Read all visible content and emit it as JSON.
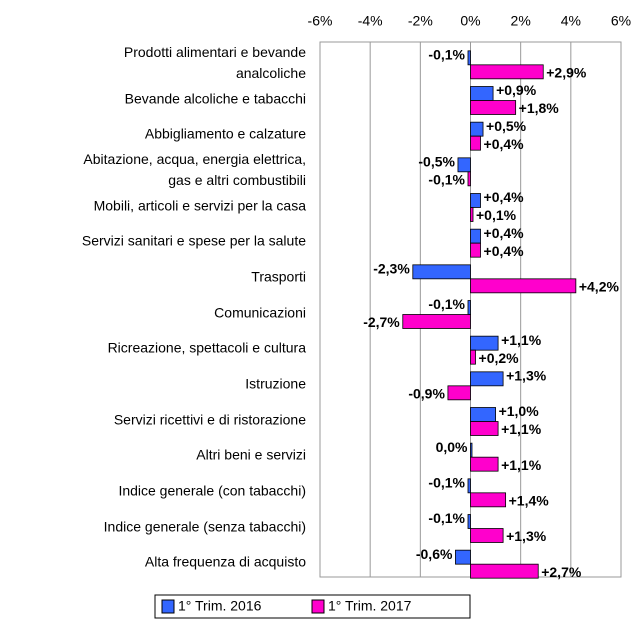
{
  "chart_data": {
    "type": "bar",
    "orientation": "horizontal",
    "categories": [
      "Prodotti alimentari e bevande\nanalcoliche",
      "Bevande alcoliche e tabacchi",
      "Abbigliamento e calzature",
      "Abitazione, acqua, energia elettrica,\ngas e altri combustibili",
      "Mobili, articoli e servizi per la casa",
      "Servizi sanitari e spese per la salute",
      "Trasporti",
      "Comunicazioni",
      "Ricreazione, spettacoli e cultura",
      "Istruzione",
      "Servizi ricettivi e di ristorazione",
      "Altri beni e servizi",
      "Indice generale (con tabacchi)",
      "Indice generale (senza tabacchi)",
      "Alta frequenza di acquisto"
    ],
    "series": [
      {
        "name": "1° Trim. 2016",
        "color": "#3366ff",
        "label_color": "#1f2fcc",
        "values": [
          -0.1,
          0.9,
          0.5,
          -0.5,
          0.4,
          0.4,
          -2.3,
          -0.1,
          1.1,
          1.3,
          1.0,
          0.0,
          -0.1,
          -0.1,
          -0.6
        ],
        "value_labels": [
          "-0,1%",
          "+0,9%",
          "+0,5%",
          "-0,5%",
          "+0,4%",
          "+0,4%",
          "-2,3%",
          "-0,1%",
          "+1,1%",
          "+1,3%",
          "+1,0%",
          "0,0%",
          "-0,1%",
          "-0,1%",
          "-0,6%"
        ]
      },
      {
        "name": "1° Trim. 2017",
        "color": "#ff00cc",
        "label_color": "#ff00cc",
        "values": [
          2.9,
          1.8,
          0.4,
          -0.1,
          0.1,
          0.4,
          4.2,
          -2.7,
          0.2,
          -0.9,
          1.1,
          1.1,
          1.4,
          1.3,
          2.7
        ],
        "value_labels": [
          "+2,9%",
          "+1,8%",
          "+0,4%",
          "-0,1%",
          "+0,1%",
          "+0,4%",
          "+4,2%",
          "-2,7%",
          "+0,2%",
          "-0,9%",
          "+1,1%",
          "+1,1%",
          "+1,4%",
          "+1,3%",
          "+2,7%"
        ]
      }
    ],
    "xlim": [
      -6,
      6
    ],
    "xticks": [
      {
        "value": -6,
        "label": "-6%"
      },
      {
        "value": -4,
        "label": "-4%"
      },
      {
        "value": -2,
        "label": "-2%"
      },
      {
        "value": 0,
        "label": "0%"
      },
      {
        "value": 2,
        "label": "2%"
      },
      {
        "value": 4,
        "label": "4%"
      },
      {
        "value": 6,
        "label": "6%"
      }
    ],
    "grid": true,
    "legend": "bottom"
  }
}
